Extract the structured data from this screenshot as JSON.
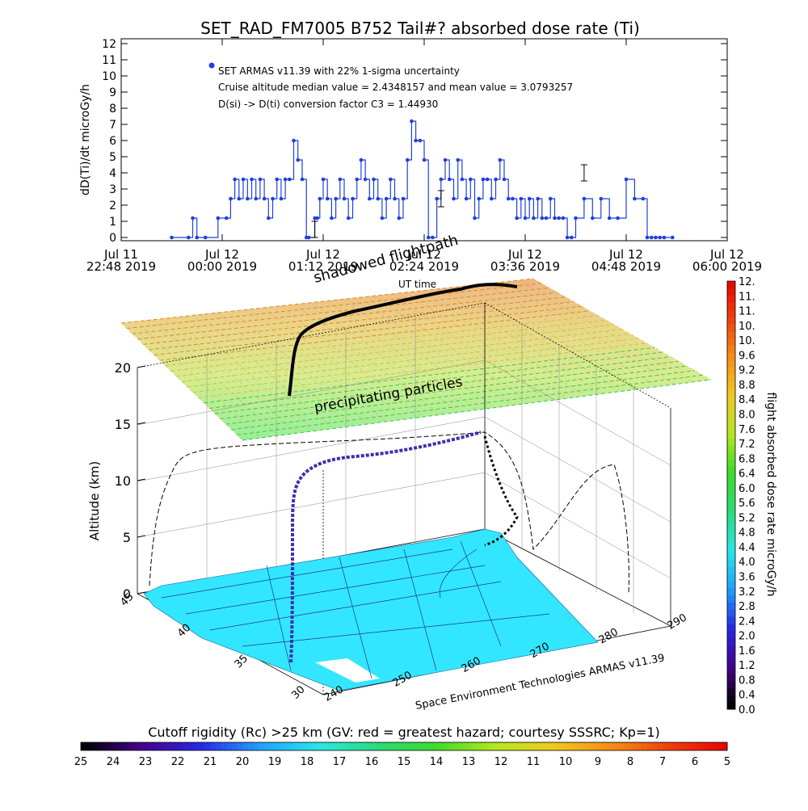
{
  "colors": {
    "series": "#1f3fe0",
    "ink": "#000000",
    "background": "#ffffff",
    "map": "#33e6ff"
  },
  "top_title": "SET_RAD_FM7005  B752 Tail#? absorbed dose rate (Ti)",
  "top_annotations": {
    "legend_label": "SET ARMAS v11.39 with 22% 1-sigma uncertainty",
    "stats": "Cruise altitude median value = 2.4348157 and mean value = 3.0793257",
    "conversion": "D(si) -> D(ti) conversion factor C3 = 1.44930"
  },
  "overlay_labels": {
    "shadowed": "shadowed flightpath",
    "ut_time": "UT time",
    "precipitating": "precipitating particles",
    "footer": "Space Environment Technologies ARMAS v11.39"
  },
  "bottom_bar_label": "Cutoff rigidity (Rc) >25 km (GV: red = greatest hazard; courtesy SSSRC; Kp=1)",
  "right_bar_label": "flight absorbed dose rate microGy/h",
  "chart_data": [
    {
      "type": "line",
      "title": "SET_RAD_FM7005  B752 Tail#? absorbed dose rate (Ti)",
      "xlabel": "",
      "ylabel": "dD(Ti)/dt microGy/h",
      "ylim": [
        0,
        12
      ],
      "y_ticks": [
        "0",
        "1",
        "2",
        "3",
        "4",
        "5",
        "6",
        "7",
        "8",
        "9",
        "10",
        "11",
        "12"
      ],
      "x_ticks": [
        {
          "line1": "Jul 11",
          "line2": "22:48 2019"
        },
        {
          "line1": "Jul 12",
          "line2": "00:00 2019"
        },
        {
          "line1": "Jul 12",
          "line2": "01:12 2019"
        },
        {
          "line1": "Jul 12",
          "line2": "02:24 2019"
        },
        {
          "line1": "Jul 12",
          "line2": "03:36 2019"
        },
        {
          "line1": "Jul 12",
          "line2": "04:48 2019"
        },
        {
          "line1": "Jul 12",
          "line2": "06:00 2019"
        }
      ],
      "xlim_hours": [
        22.8,
        30.0
      ],
      "x_hours": [
        23.4,
        23.6,
        23.65,
        23.7,
        23.8,
        23.95,
        24.05,
        24.1,
        24.15,
        24.2,
        24.25,
        24.3,
        24.35,
        24.4,
        24.45,
        24.5,
        24.55,
        24.6,
        24.65,
        24.7,
        24.75,
        24.8,
        24.85,
        24.9,
        24.95,
        25.0,
        25.03,
        25.1,
        25.13,
        25.16,
        25.2,
        25.25,
        25.3,
        25.35,
        25.4,
        25.45,
        25.5,
        25.55,
        25.6,
        25.65,
        25.7,
        25.75,
        25.8,
        25.85,
        25.9,
        25.95,
        26.0,
        26.05,
        26.1,
        26.15,
        26.2,
        26.25,
        26.3,
        26.35,
        26.4,
        26.45,
        26.5,
        26.55,
        26.6,
        26.65,
        26.7,
        26.75,
        26.8,
        26.85,
        26.9,
        26.95,
        27.0,
        27.05,
        27.1,
        27.15,
        27.2,
        27.25,
        27.3,
        27.35,
        27.4,
        27.45,
        27.5,
        27.55,
        27.6,
        27.65,
        27.7,
        27.75,
        27.8,
        27.85,
        27.9,
        27.95,
        28.0,
        28.05,
        28.1,
        28.15,
        28.2,
        28.3,
        28.4,
        28.5,
        28.6,
        28.7,
        28.8,
        28.9,
        29.0,
        29.05,
        29.1,
        29.15,
        29.2,
        29.25,
        29.35
      ],
      "series": [
        {
          "values": [
            0,
            0,
            1.2,
            0,
            0,
            1.2,
            1.2,
            2.4,
            3.6,
            2.4,
            3.6,
            2.4,
            3.6,
            2.4,
            3.6,
            2.4,
            1.2,
            2.4,
            3.6,
            2.4,
            3.6,
            3.6,
            6.0,
            4.8,
            3.6,
            0,
            0,
            1.2,
            1.2,
            2.4,
            3.6,
            2.4,
            1.2,
            2.4,
            3.6,
            2.4,
            1.2,
            2.4,
            3.6,
            4.8,
            3.6,
            2.4,
            3.6,
            2.4,
            1.2,
            2.4,
            3.6,
            2.4,
            1.2,
            2.4,
            4.8,
            7.2,
            6.0,
            6.0,
            4.8,
            0,
            0,
            2.4,
            3.6,
            4.8,
            3.6,
            2.4,
            4.8,
            3.6,
            2.4,
            3.6,
            1.2,
            2.4,
            3.6,
            3.6,
            2.4,
            3.6,
            4.8,
            3.6,
            2.4,
            2.4,
            1.2,
            2.4,
            1.2,
            2.4,
            1.2,
            2.4,
            1.2,
            1.2,
            2.4,
            1.2,
            1.2,
            1.2,
            0,
            0,
            1.2,
            2.4,
            1.2,
            2.4,
            1.2,
            1.2,
            3.6,
            2.4,
            2.4,
            0,
            0,
            0,
            0,
            0,
            0
          ]
        }
      ],
      "error_bar_hours": [
        25.1,
        26.6,
        28.3
      ],
      "error_bar_values": [
        0.5,
        2.4,
        4.0
      ]
    },
    {
      "type": "scatter",
      "title": "",
      "xlabel": "",
      "ylabel": "Altitude (km)",
      "zlim": [
        0,
        20
      ],
      "z_ticks": [
        "0",
        "5",
        "10",
        "15",
        "20"
      ],
      "lat_ticks": [
        "45",
        "40",
        "35",
        "30"
      ],
      "lon_ticks": [
        "240",
        "250",
        "260",
        "270",
        "280",
        "290"
      ]
    }
  ],
  "dose_scale": [
    "0.0",
    "0.4",
    "0.8",
    "1.2",
    "1.6",
    "2.0",
    "2.4",
    "2.8",
    "3.2",
    "3.6",
    "4.0",
    "4.4",
    "4.8",
    "5.2",
    "5.6",
    "6.0",
    "6.4",
    "6.8",
    "7.2",
    "7.6",
    "8.0",
    "8.4",
    "8.8",
    "9.2",
    "9.6",
    "10.",
    "10.",
    "11.",
    "11.",
    "12."
  ],
  "rigidity_scale": [
    "25",
    "24",
    "23",
    "22",
    "21",
    "20",
    "19",
    "18",
    "17",
    "16",
    "15",
    "14",
    "13",
    "12",
    "11",
    "10",
    "9",
    "8",
    "7",
    "6",
    "5"
  ]
}
